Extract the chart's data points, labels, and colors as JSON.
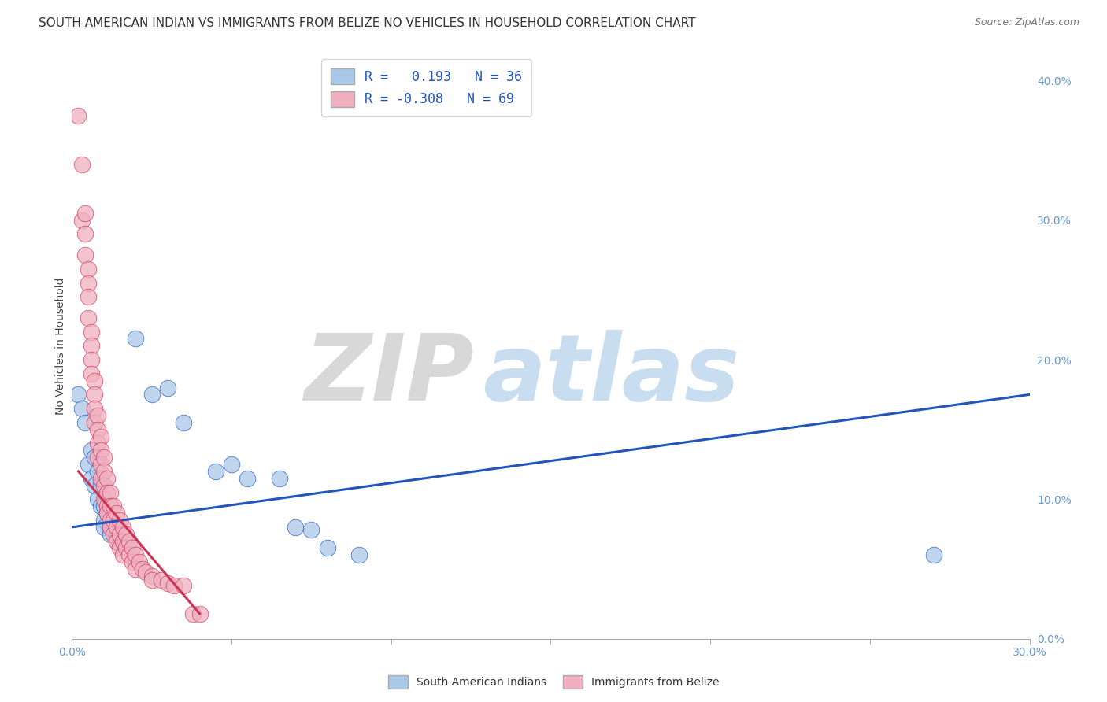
{
  "title": "SOUTH AMERICAN INDIAN VS IMMIGRANTS FROM BELIZE NO VEHICLES IN HOUSEHOLD CORRELATION CHART",
  "source": "Source: ZipAtlas.com",
  "ylabel": "No Vehicles in Household",
  "right_yticks": [
    "40.0%",
    "30.0%",
    "20.0%",
    "10.0%",
    "0.0%"
  ],
  "right_ytick_vals": [
    0.4,
    0.3,
    0.2,
    0.1,
    0.0
  ],
  "xlim": [
    0.0,
    0.3
  ],
  "ylim": [
    0.0,
    0.42
  ],
  "legend_blue_label": "R =   0.193   N = 36",
  "legend_pink_label": "R = -0.308   N = 69",
  "legend_label1": "South American Indians",
  "legend_label2": "Immigrants from Belize",
  "watermark_zip": "ZIP",
  "watermark_atlas": "atlas",
  "blue_scatter": [
    [
      0.002,
      0.175
    ],
    [
      0.003,
      0.165
    ],
    [
      0.004,
      0.155
    ],
    [
      0.005,
      0.125
    ],
    [
      0.006,
      0.135
    ],
    [
      0.006,
      0.115
    ],
    [
      0.007,
      0.13
    ],
    [
      0.007,
      0.11
    ],
    [
      0.008,
      0.12
    ],
    [
      0.008,
      0.1
    ],
    [
      0.009,
      0.11
    ],
    [
      0.009,
      0.095
    ],
    [
      0.01,
      0.095
    ],
    [
      0.01,
      0.085
    ],
    [
      0.01,
      0.08
    ],
    [
      0.011,
      0.09
    ],
    [
      0.012,
      0.08
    ],
    [
      0.012,
      0.075
    ],
    [
      0.013,
      0.078
    ],
    [
      0.014,
      0.072
    ],
    [
      0.015,
      0.068
    ],
    [
      0.016,
      0.075
    ],
    [
      0.018,
      0.07
    ],
    [
      0.02,
      0.215
    ],
    [
      0.025,
      0.175
    ],
    [
      0.03,
      0.18
    ],
    [
      0.035,
      0.155
    ],
    [
      0.045,
      0.12
    ],
    [
      0.05,
      0.125
    ],
    [
      0.055,
      0.115
    ],
    [
      0.065,
      0.115
    ],
    [
      0.07,
      0.08
    ],
    [
      0.075,
      0.078
    ],
    [
      0.08,
      0.065
    ],
    [
      0.09,
      0.06
    ],
    [
      0.27,
      0.06
    ]
  ],
  "pink_scatter": [
    [
      0.002,
      0.375
    ],
    [
      0.003,
      0.34
    ],
    [
      0.003,
      0.3
    ],
    [
      0.004,
      0.305
    ],
    [
      0.004,
      0.29
    ],
    [
      0.004,
      0.275
    ],
    [
      0.005,
      0.265
    ],
    [
      0.005,
      0.255
    ],
    [
      0.005,
      0.245
    ],
    [
      0.005,
      0.23
    ],
    [
      0.006,
      0.22
    ],
    [
      0.006,
      0.21
    ],
    [
      0.006,
      0.2
    ],
    [
      0.006,
      0.19
    ],
    [
      0.007,
      0.185
    ],
    [
      0.007,
      0.175
    ],
    [
      0.007,
      0.165
    ],
    [
      0.007,
      0.155
    ],
    [
      0.008,
      0.16
    ],
    [
      0.008,
      0.15
    ],
    [
      0.008,
      0.14
    ],
    [
      0.008,
      0.13
    ],
    [
      0.009,
      0.145
    ],
    [
      0.009,
      0.135
    ],
    [
      0.009,
      0.125
    ],
    [
      0.009,
      0.115
    ],
    [
      0.01,
      0.13
    ],
    [
      0.01,
      0.12
    ],
    [
      0.01,
      0.11
    ],
    [
      0.01,
      0.1
    ],
    [
      0.011,
      0.115
    ],
    [
      0.011,
      0.105
    ],
    [
      0.011,
      0.095
    ],
    [
      0.011,
      0.09
    ],
    [
      0.012,
      0.105
    ],
    [
      0.012,
      0.095
    ],
    [
      0.012,
      0.085
    ],
    [
      0.012,
      0.08
    ],
    [
      0.013,
      0.095
    ],
    [
      0.013,
      0.085
    ],
    [
      0.013,
      0.075
    ],
    [
      0.014,
      0.09
    ],
    [
      0.014,
      0.08
    ],
    [
      0.014,
      0.07
    ],
    [
      0.015,
      0.085
    ],
    [
      0.015,
      0.075
    ],
    [
      0.015,
      0.065
    ],
    [
      0.016,
      0.08
    ],
    [
      0.016,
      0.07
    ],
    [
      0.016,
      0.06
    ],
    [
      0.017,
      0.075
    ],
    [
      0.017,
      0.065
    ],
    [
      0.018,
      0.07
    ],
    [
      0.018,
      0.06
    ],
    [
      0.019,
      0.065
    ],
    [
      0.019,
      0.055
    ],
    [
      0.02,
      0.06
    ],
    [
      0.02,
      0.05
    ],
    [
      0.021,
      0.055
    ],
    [
      0.022,
      0.05
    ],
    [
      0.023,
      0.048
    ],
    [
      0.025,
      0.045
    ],
    [
      0.025,
      0.042
    ],
    [
      0.028,
      0.042
    ],
    [
      0.03,
      0.04
    ],
    [
      0.032,
      0.038
    ],
    [
      0.035,
      0.038
    ],
    [
      0.038,
      0.018
    ],
    [
      0.04,
      0.018
    ]
  ],
  "blue_line": [
    [
      0.0,
      0.08
    ],
    [
      0.3,
      0.175
    ]
  ],
  "pink_line": [
    [
      0.002,
      0.12
    ],
    [
      0.04,
      0.018
    ]
  ],
  "dot_color_blue": "#a8c8e8",
  "dot_color_pink": "#f0b0c0",
  "line_color_blue": "#2255bb",
  "line_color_pink": "#cc3355",
  "background_color": "#ffffff",
  "grid_color": "#cccccc",
  "title_fontsize": 11,
  "axis_fontsize": 10,
  "tick_fontsize": 10,
  "tick_color": "#6699cc"
}
